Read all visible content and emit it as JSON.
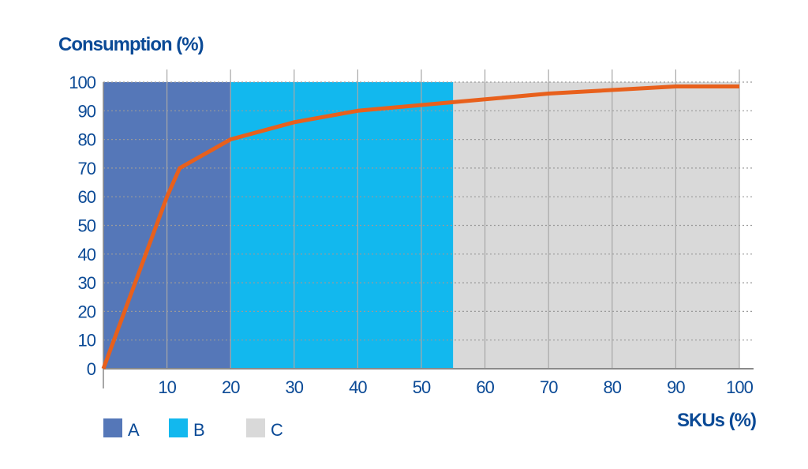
{
  "chart_data": {
    "type": "line",
    "ylabel": "Consumption (%)",
    "xlabel": "SKUs (%)",
    "xlim": [
      0,
      100
    ],
    "ylim": [
      0,
      100
    ],
    "x_ticks": [
      "10",
      "20",
      "30",
      "40",
      "50",
      "60",
      "70",
      "80",
      "90",
      "100"
    ],
    "y_ticks": [
      "0",
      "10",
      "20",
      "30",
      "40",
      "50",
      "60",
      "70",
      "80",
      "90",
      "100"
    ],
    "grid": "vertical solid, horizontal dotted",
    "series": [
      {
        "color": "#e8601c",
        "x": [
          0,
          10,
          12,
          20,
          30,
          40,
          55,
          70,
          90,
          100
        ],
        "y": [
          0,
          60,
          70,
          80,
          86,
          90,
          93,
          96,
          98.5,
          98.5
        ]
      }
    ],
    "zones": [
      {
        "name": "A",
        "from": 0,
        "to": 20,
        "color": "#5577b8"
      },
      {
        "name": "B",
        "from": 20,
        "to": 55,
        "color": "#12b8ee"
      },
      {
        "name": "C",
        "from": 55,
        "to": 100,
        "color": "#d9d9d9"
      }
    ],
    "legend": "bottom-left"
  }
}
